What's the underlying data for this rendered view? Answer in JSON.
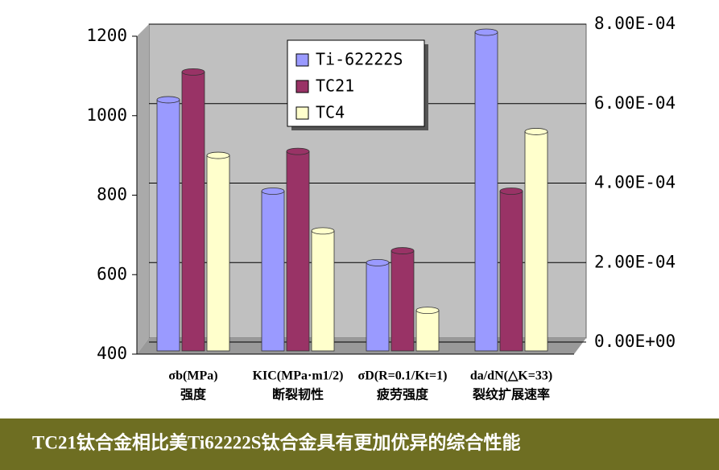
{
  "chart_data": {
    "type": "bar3d",
    "categories": [
      "σb(MPa)",
      "KIC(MPa·m1/2)",
      "σD(R=0.1/Kt=1)",
      "da/dN(△K=33)"
    ],
    "category_notes": [
      "强度",
      "断裂韧性",
      "疲劳强度",
      "裂纹扩展速率"
    ],
    "series": [
      {
        "name": "Ti-62222S",
        "color": "#9a9aff",
        "values": [
          1030,
          800,
          620,
          null
        ],
        "values_y2": [
          null,
          null,
          null,
          0.0008
        ]
      },
      {
        "name": "TC21",
        "color": "#993366",
        "values": [
          1100,
          900,
          650,
          null
        ],
        "values_y2": [
          null,
          null,
          null,
          0.0004
        ]
      },
      {
        "name": "TC4",
        "color": "#ffffcc",
        "values": [
          890,
          700,
          500,
          null
        ],
        "values_y2": [
          null,
          null,
          null,
          0.00055
        ]
      }
    ],
    "ylim": [
      400,
      1200
    ],
    "yticks": [
      400,
      600,
      800,
      1000,
      1200
    ],
    "y2lim": [
      0,
      0.0008
    ],
    "y2ticks": [
      {
        "value": 0,
        "label": "0.00E+00"
      },
      {
        "value": 0.0002,
        "label": "2.00E-04"
      },
      {
        "value": 0.0004,
        "label": "4.00E-04"
      },
      {
        "value": 0.0006,
        "label": "6.00E-04"
      },
      {
        "value": 0.0008,
        "label": "8.00E-04"
      }
    ],
    "grid": true
  },
  "caption": "TC21钛合金相比美Ti62222S钛合金具有更加优异的综合性能"
}
